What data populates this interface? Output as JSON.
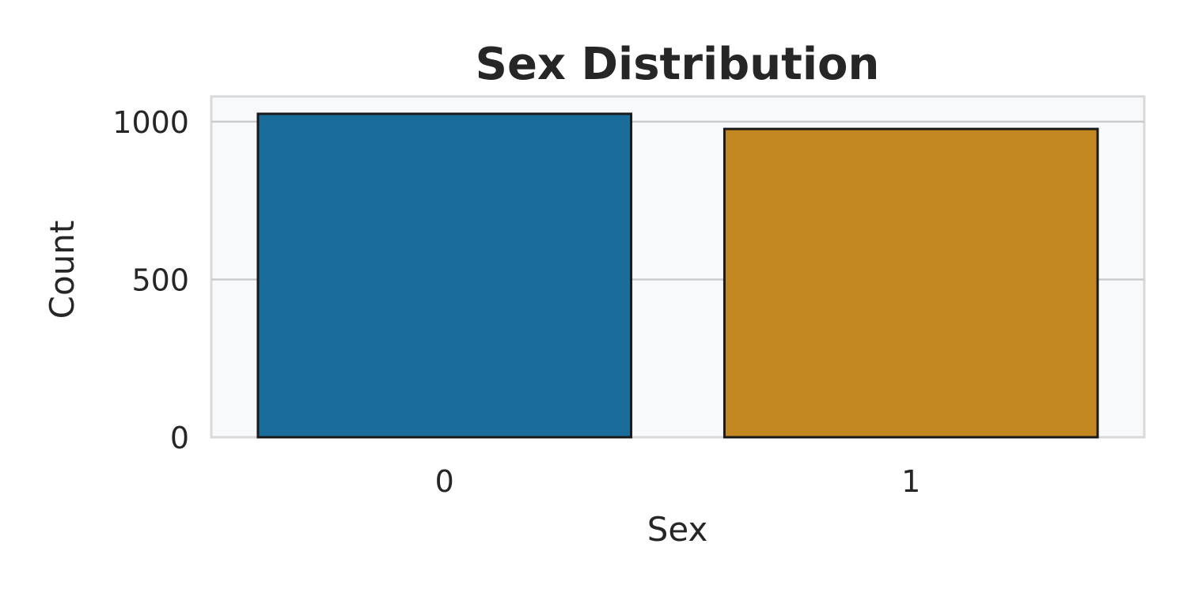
{
  "chart_data": {
    "type": "bar",
    "title": "Sex Distribution",
    "xlabel": "Sex",
    "ylabel": "Count",
    "categories": [
      "0",
      "1"
    ],
    "values": [
      1025,
      977
    ],
    "ylim": [
      0,
      1080
    ],
    "yticks": [
      0,
      500,
      1000
    ],
    "colors": [
      "#1a6d9b",
      "#c28721"
    ],
    "grid": true,
    "legend": "none"
  }
}
